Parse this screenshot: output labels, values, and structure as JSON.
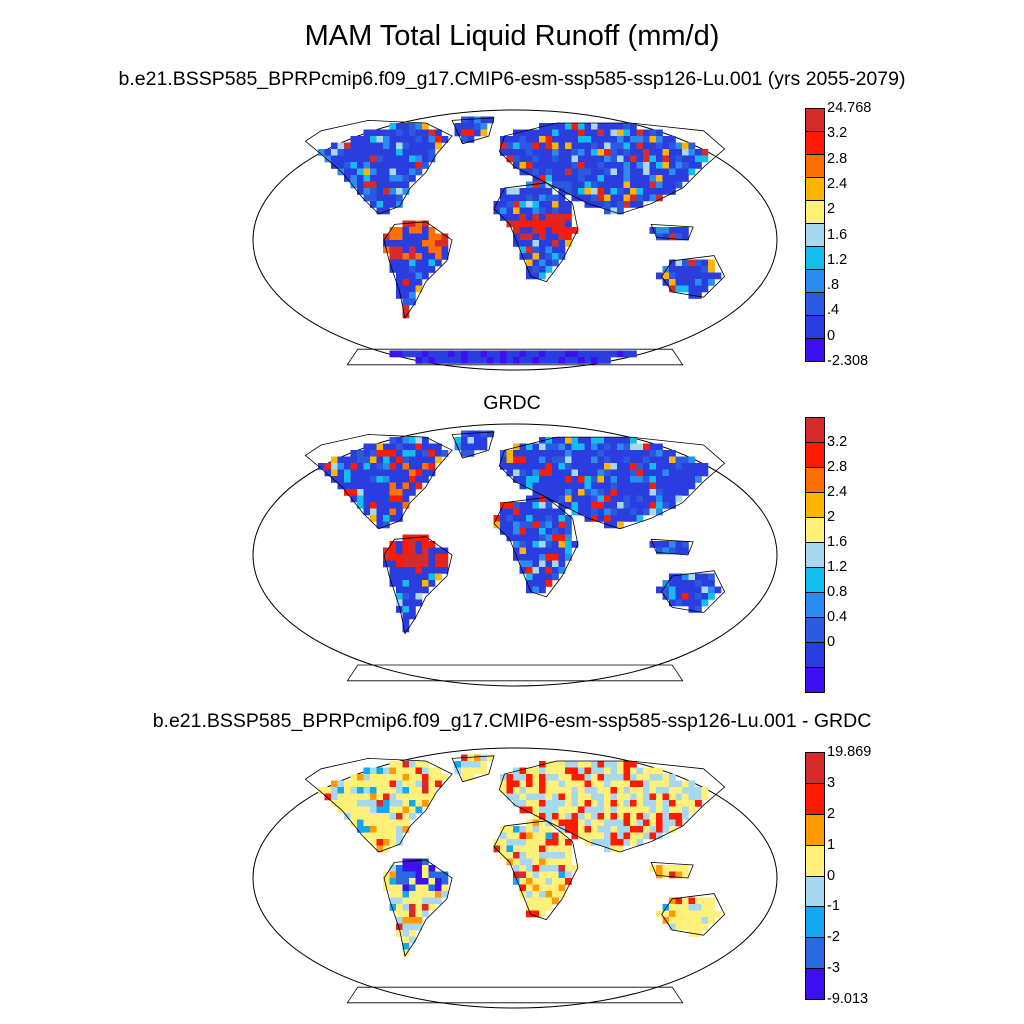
{
  "figure": {
    "title": "MAM Total Liquid Runoff (mm/d)"
  },
  "panels": [
    {
      "id": "model",
      "title": "b.e21.BSSP585_BPRPcmip6.f09_g17.CMIP6-esm-ssp585-ssp126-Lu.001 (yrs 2055-2079)",
      "colorbar": {
        "labels": [
          "24.768",
          "3.2",
          "2.8",
          "2.4",
          "2",
          "1.6",
          "1.2",
          ".8",
          ".4",
          "0",
          "-2.308"
        ],
        "colors": [
          "#d62b2b",
          "#ff1a00",
          "#ff7000",
          "#ffb400",
          "#fff07a",
          "#a8d8f0",
          "#14bdf0",
          "#2a8cf0",
          "#2a5ae0",
          "#2a3ee0",
          "#3d10f0"
        ]
      }
    },
    {
      "id": "grdc",
      "title": "GRDC",
      "colorbar": {
        "labels": [
          "3.2",
          "2.8",
          "2.4",
          "2",
          "1.6",
          "1.2",
          "0.8",
          "0.4",
          "0"
        ],
        "colors": [
          "#d62b2b",
          "#ff1a00",
          "#ff7000",
          "#ffb400",
          "#fff07a",
          "#a8d8f0",
          "#14bdf0",
          "#2a8cf0",
          "#2a5ae0",
          "#2a3ee0",
          "#3d10f0"
        ]
      }
    },
    {
      "id": "diff",
      "title": "b.e21.BSSP585_BPRPcmip6.f09_g17.CMIP6-esm-ssp585-ssp126-Lu.001 - GRDC",
      "colorbar": {
        "labels": [
          "19.869",
          "3",
          "2",
          "1",
          "0",
          "-1",
          "-2",
          "-3",
          "-9.013"
        ],
        "colors": [
          "#d62b2b",
          "#ff1a00",
          "#ff9a00",
          "#fff07a",
          "#a8d8f0",
          "#14a8f0",
          "#2a6ae0",
          "#3d10f0"
        ]
      }
    }
  ]
}
